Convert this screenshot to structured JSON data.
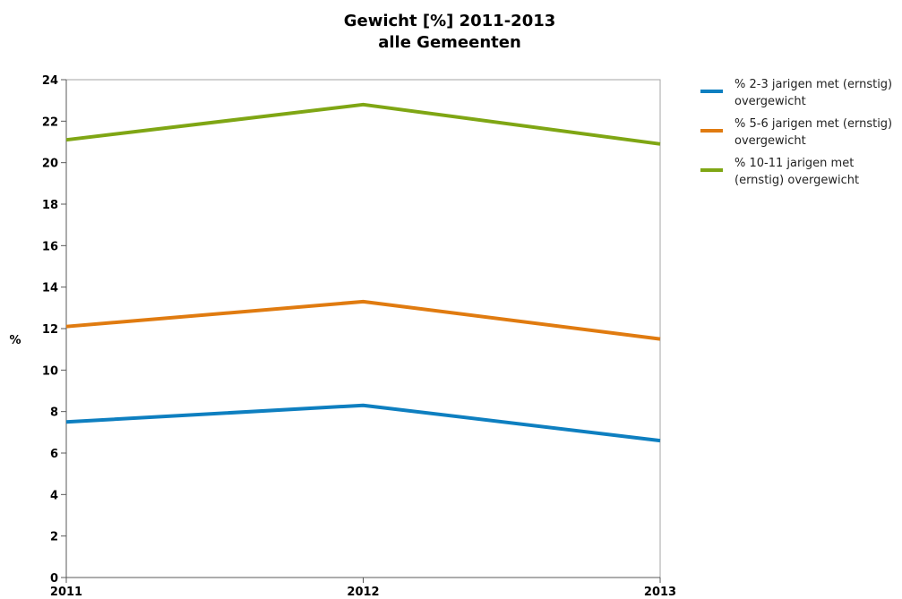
{
  "chart_data": {
    "type": "line",
    "title_lines": [
      "Gewicht [%] 2011-2013",
      "alle Gemeenten"
    ],
    "xlabel": "",
    "ylabel": "%",
    "x": [
      "2011",
      "2012",
      "2013"
    ],
    "ylim": [
      0,
      24
    ],
    "yticks": [
      "0",
      "2",
      "4",
      "6",
      "8",
      "10",
      "12",
      "14",
      "16",
      "18",
      "20",
      "22",
      "24"
    ],
    "grid": false,
    "legend_position": "right",
    "series": [
      {
        "name_lines": [
          "% 2-3 jarigen met (ernstig)",
          "overgewicht"
        ],
        "color": "#0E7FC0",
        "values": [
          7.5,
          8.3,
          6.6
        ]
      },
      {
        "name_lines": [
          "% 5-6 jarigen met (ernstig)",
          "overgewicht"
        ],
        "color": "#E07B10",
        "values": [
          12.1,
          13.3,
          11.5
        ]
      },
      {
        "name_lines": [
          "% 10-11 jarigen met",
          "(ernstig) overgewicht"
        ],
        "color": "#7FA614",
        "values": [
          21.1,
          22.8,
          20.9
        ]
      }
    ]
  }
}
